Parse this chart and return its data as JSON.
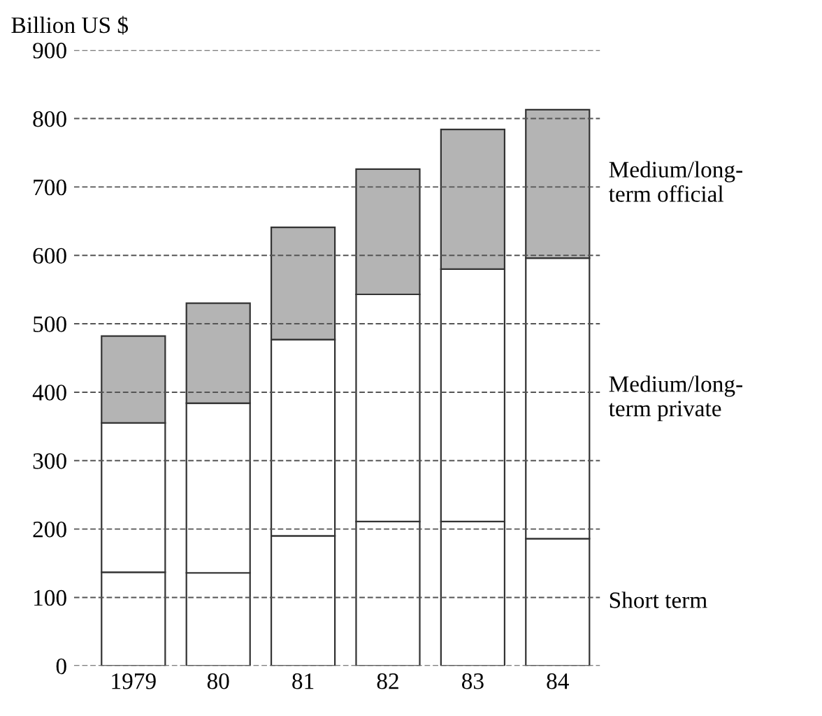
{
  "chart_data": {
    "type": "bar",
    "stacked": true,
    "ylabel": "Billion US $",
    "categories": [
      "1979",
      "80",
      "81",
      "82",
      "83",
      "84"
    ],
    "series": [
      {
        "name": "Short term",
        "color": "#ffffff",
        "values": [
          137,
          136,
          190,
          211,
          211,
          186
        ]
      },
      {
        "name": "Medium/long-\nterm private",
        "color": "#ffffff",
        "values": [
          218,
          248,
          287,
          332,
          369,
          410
        ]
      },
      {
        "name": "Medium/long-\nterm official",
        "color": "#b4b4b4",
        "values": [
          127,
          146,
          164,
          183,
          204,
          217
        ]
      }
    ],
    "ylim": [
      0,
      900
    ],
    "yticks": [
      0,
      100,
      200,
      300,
      400,
      500,
      600,
      700,
      800,
      900
    ],
    "grid": "y",
    "legend": false
  }
}
